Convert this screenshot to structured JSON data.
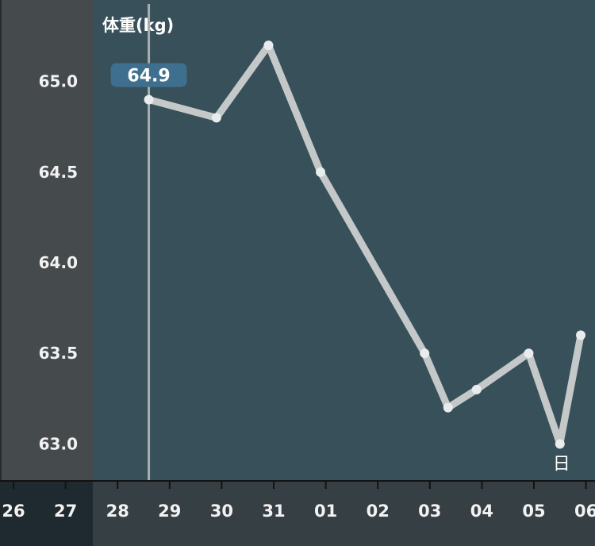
{
  "chart_data": {
    "type": "line",
    "title": "体重(kg)",
    "ylabel": "",
    "xlabel": "",
    "ylim": [
      62.8,
      65.45
    ],
    "yticks": [
      "65.0",
      "64.5",
      "64.0",
      "63.5",
      "63.0"
    ],
    "x_tick_labels": [
      "26",
      "27",
      "28",
      "29",
      "30",
      "31",
      "01",
      "02",
      "03",
      "04",
      "05",
      "06"
    ],
    "x_tick_positions": [
      0,
      1,
      2,
      3,
      4,
      5,
      6,
      7,
      8,
      9,
      10,
      11
    ],
    "grid": false,
    "series": [
      {
        "x": [
          2.6,
          3.9,
          4.9,
          5.9,
          7.9,
          8.35,
          8.9,
          9.9,
          10.5,
          10.9
        ],
        "y": [
          64.9,
          64.8,
          65.2,
          64.5,
          63.5,
          63.2,
          63.3,
          63.5,
          63.0,
          63.6
        ]
      }
    ],
    "highlight": {
      "index": 0,
      "label": "64.9"
    },
    "annotations": [
      {
        "index": 8,
        "text": "日"
      }
    ]
  },
  "colors": {
    "plot_bg": "#37505a",
    "left_panel_bg": "#454b4c",
    "axis_bg": "#363f44",
    "line": "#c4c8c9",
    "callout": "#3f6f8e"
  }
}
